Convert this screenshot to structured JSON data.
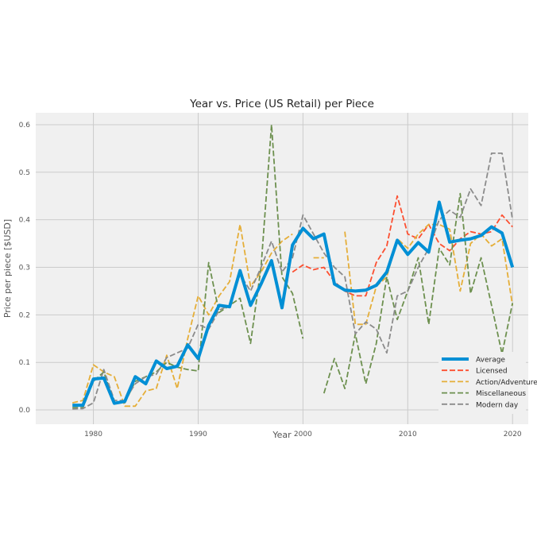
{
  "chart_data": {
    "type": "line",
    "title": "Year vs. Price (US Retail) per Piece",
    "xlabel": "Year",
    "ylabel": "Price per piece [$USD]",
    "xlim": [
      1974.5,
      2021.5
    ],
    "ylim": [
      -0.03,
      0.625
    ],
    "xticks": [
      1980,
      1990,
      2000,
      2010,
      2020
    ],
    "yticks": [
      0.0,
      0.1,
      0.2,
      0.3,
      0.4,
      0.5,
      0.6
    ],
    "ytick_labels": [
      "0.0",
      "0.1",
      "0.2",
      "0.3",
      "0.4",
      "0.5",
      "0.6"
    ],
    "grid": true,
    "legend_position": "lower-right",
    "series": [
      {
        "name": "Average",
        "color": "#008fd5",
        "style": "solid",
        "x": [
          1978,
          1979,
          1980,
          1981,
          1982,
          1983,
          1984,
          1985,
          1986,
          1987,
          1988,
          1989,
          1990,
          1991,
          1992,
          1993,
          1994,
          1995,
          1996,
          1997,
          1998,
          1999,
          2000,
          2001,
          2002,
          2003,
          2004,
          2005,
          2006,
          2007,
          2008,
          2009,
          2010,
          2011,
          2012,
          2013,
          2014,
          2015,
          2016,
          2017,
          2018,
          2019,
          2020
        ],
        "y": [
          0.01,
          0.01,
          0.065,
          0.067,
          0.014,
          0.018,
          0.07,
          0.055,
          0.103,
          0.087,
          0.092,
          0.137,
          0.108,
          0.178,
          0.22,
          0.217,
          0.293,
          0.22,
          0.265,
          0.314,
          0.215,
          0.347,
          0.382,
          0.36,
          0.37,
          0.265,
          0.252,
          0.25,
          0.252,
          0.262,
          0.29,
          0.357,
          0.327,
          0.352,
          0.332,
          0.437,
          0.353,
          0.357,
          0.36,
          0.367,
          0.385,
          0.372,
          0.3
        ]
      },
      {
        "name": "Licensed",
        "color": "#fc4f30",
        "style": "dashed",
        "x": [
          1999,
          2000,
          2001,
          2002,
          2003,
          2004,
          2005,
          2006,
          2007,
          2008,
          2009,
          2010,
          2011,
          2012,
          2013,
          2014,
          2015,
          2016,
          2017,
          2018,
          2019,
          2020
        ],
        "y": [
          0.29,
          0.305,
          0.295,
          0.3,
          0.27,
          0.25,
          0.24,
          0.24,
          0.31,
          0.345,
          0.45,
          0.37,
          0.36,
          0.39,
          0.35,
          0.335,
          0.36,
          0.375,
          0.37,
          0.375,
          0.41,
          0.385
        ]
      },
      {
        "name": "Action/Adventure",
        "color": "#e5ae38",
        "style": "dashed",
        "x": [
          1978,
          1979,
          1980,
          1981,
          1982,
          1983,
          1984,
          1985,
          1986,
          1987,
          1988,
          1989,
          1990,
          1991,
          1992,
          1993,
          1994,
          1995,
          1996,
          1997,
          1998,
          1999,
          2000,
          2001,
          2002,
          null,
          2004,
          2005,
          2006,
          2007,
          2008,
          2009,
          2010,
          2011,
          2012,
          2013,
          2014,
          2015,
          2016,
          2017,
          2018,
          2019,
          2020
        ],
        "y": [
          0.015,
          0.02,
          0.095,
          0.08,
          0.07,
          0.008,
          0.008,
          0.04,
          0.045,
          0.115,
          0.045,
          0.15,
          0.24,
          0.2,
          0.24,
          0.27,
          0.39,
          0.26,
          0.29,
          0.33,
          0.355,
          0.37,
          null,
          0.32,
          0.32,
          null,
          0.375,
          0.18,
          0.18,
          0.26,
          0.28,
          0.36,
          0.34,
          0.37,
          0.39,
          0.39,
          0.38,
          0.25,
          0.35,
          0.37,
          0.345,
          0.36,
          0.22
        ]
      },
      {
        "name": "Miscellaneous",
        "color": "#6d904f",
        "style": "dashed",
        "x": [
          1978,
          1979,
          1980,
          1981,
          1982,
          1983,
          1984,
          1985,
          1986,
          1987,
          1988,
          1989,
          1990,
          1991,
          1992,
          1993,
          1994,
          1995,
          1996,
          1997,
          1998,
          1999,
          2000,
          null,
          2002,
          2003,
          2004,
          2005,
          2006,
          2007,
          2008,
          2009,
          2010,
          2011,
          2012,
          2013,
          2014,
          2015,
          2016,
          2017,
          2018,
          2019,
          2020
        ],
        "y": [
          0.005,
          0.005,
          0.06,
          0.08,
          0.015,
          0.015,
          0.06,
          0.07,
          0.08,
          0.1,
          0.09,
          0.085,
          0.082,
          0.31,
          0.205,
          0.22,
          0.235,
          0.14,
          0.3,
          0.6,
          0.28,
          0.245,
          0.15,
          null,
          0.035,
          0.108,
          0.045,
          0.16,
          0.055,
          0.14,
          0.28,
          0.19,
          0.25,
          0.32,
          0.18,
          0.34,
          0.305,
          0.455,
          0.245,
          0.32,
          0.22,
          0.118,
          0.225
        ]
      },
      {
        "name": "Modern day",
        "color": "#8b8b8b",
        "style": "dashed",
        "x": [
          1978,
          1979,
          1980,
          1981,
          1982,
          1983,
          1984,
          1985,
          1986,
          1987,
          1988,
          1989,
          1990,
          1991,
          1992,
          1993,
          1994,
          1995,
          1996,
          1997,
          1998,
          1999,
          2000,
          2001,
          2002,
          2003,
          2004,
          2005,
          2006,
          2007,
          2008,
          2009,
          2010,
          2011,
          2012,
          2013,
          2014,
          2015,
          2016,
          2017,
          2018,
          2019,
          2020
        ],
        "y": [
          0.002,
          0.003,
          0.015,
          0.085,
          0.02,
          0.02,
          0.055,
          0.07,
          0.075,
          0.11,
          0.12,
          0.13,
          0.18,
          0.17,
          0.21,
          0.22,
          0.285,
          0.25,
          0.3,
          0.355,
          0.29,
          0.32,
          0.41,
          0.37,
          0.33,
          0.3,
          0.28,
          0.16,
          0.185,
          0.17,
          0.12,
          0.24,
          0.25,
          0.3,
          0.34,
          0.4,
          0.42,
          0.405,
          0.465,
          0.43,
          0.54,
          0.54,
          0.4
        ]
      }
    ]
  }
}
